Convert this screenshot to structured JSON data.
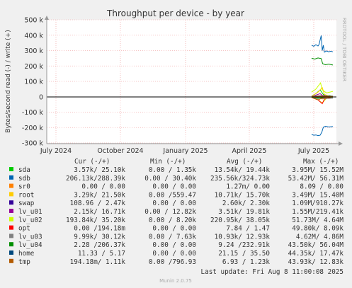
{
  "chart_data": {
    "type": "line",
    "title": "Throughput per device - by year",
    "ylabel": "Bytes/second read (-) / write (+)",
    "xlabel": "",
    "ylim": [
      -300000,
      500000
    ],
    "y_ticks": [
      {
        "value": 500000,
        "label": "500 k"
      },
      {
        "value": 400000,
        "label": "400 k"
      },
      {
        "value": 300000,
        "label": "300 k"
      },
      {
        "value": 200000,
        "label": "200 k"
      },
      {
        "value": 100000,
        "label": "100 k"
      },
      {
        "value": 0,
        "label": "0"
      },
      {
        "value": -100000,
        "label": "-100 k"
      },
      {
        "value": -200000,
        "label": "-200 k"
      },
      {
        "value": -300000,
        "label": "-300 k"
      }
    ],
    "x_ticks": [
      "July 2024",
      "October 2024",
      "January 2025",
      "April 2025",
      "July 2025"
    ],
    "grid": true,
    "watermark": "RRDTOOL / TOBI OETIKER",
    "series": [
      {
        "name": "sda",
        "color": "#00cc00",
        "write": [
          [
            0,
            5000
          ],
          [
            0.2,
            20000
          ],
          [
            0.4,
            45000
          ],
          [
            0.55,
            15000
          ],
          [
            0.7,
            6000
          ],
          [
            0.85,
            8000
          ],
          [
            1,
            3600
          ]
        ],
        "read": [
          [
            0,
            -3000
          ],
          [
            0.3,
            -12000
          ],
          [
            0.5,
            -8000
          ],
          [
            0.7,
            -4000
          ],
          [
            1,
            -3300
          ]
        ]
      },
      {
        "name": "sdb",
        "color": "#0066b3",
        "write": [
          [
            0,
            335000
          ],
          [
            0.1,
            328000
          ],
          [
            0.2,
            338000
          ],
          [
            0.3,
            330000
          ],
          [
            0.35,
            340000
          ],
          [
            0.45,
            398000
          ],
          [
            0.5,
            300000
          ],
          [
            0.55,
            335000
          ],
          [
            0.6,
            290000
          ],
          [
            0.7,
            298000
          ],
          [
            0.8,
            292000
          ],
          [
            0.9,
            296000
          ],
          [
            1,
            292000
          ]
        ],
        "read": [
          [
            0,
            -245000
          ],
          [
            0.1,
            -250000
          ],
          [
            0.2,
            -248000
          ],
          [
            0.3,
            -252000
          ],
          [
            0.4,
            -250000
          ],
          [
            0.48,
            -230000
          ],
          [
            0.55,
            -198000
          ],
          [
            0.65,
            -192000
          ],
          [
            0.8,
            -196000
          ],
          [
            1,
            -194000
          ]
        ]
      },
      {
        "name": "sr0",
        "color": "#ff8000",
        "write": [
          [
            0,
            0
          ],
          [
            1,
            0
          ]
        ],
        "read": [
          [
            0,
            0
          ],
          [
            1,
            0
          ]
        ]
      },
      {
        "name": "root",
        "color": "#ffcc00",
        "write": [
          [
            0,
            4000
          ],
          [
            0.3,
            30000
          ],
          [
            0.5,
            60000
          ],
          [
            0.6,
            15000
          ],
          [
            0.8,
            6000
          ],
          [
            1,
            4000
          ]
        ],
        "read": [
          [
            0,
            -2000
          ],
          [
            0.3,
            -8000
          ],
          [
            0.5,
            -15000
          ],
          [
            0.7,
            -5000
          ],
          [
            1,
            -3000
          ]
        ]
      },
      {
        "name": "swap",
        "color": "#330099",
        "write": [
          [
            0,
            0
          ],
          [
            0.45,
            3000
          ],
          [
            0.5,
            0
          ],
          [
            1,
            0
          ]
        ],
        "read": [
          [
            0,
            0
          ],
          [
            0.5,
            -2000
          ],
          [
            1,
            0
          ]
        ]
      },
      {
        "name": "lv_u01",
        "color": "#990099",
        "write": [
          [
            0,
            2000
          ],
          [
            0.4,
            20000
          ],
          [
            0.5,
            10000
          ],
          [
            1,
            2000
          ]
        ],
        "read": [
          [
            0,
            -1000
          ],
          [
            0.5,
            -5000
          ],
          [
            1,
            -2000
          ]
        ]
      },
      {
        "name": "lv_u02",
        "color": "#ccff00",
        "write": [
          [
            0,
            30000
          ],
          [
            0.2,
            50000
          ],
          [
            0.42,
            90000
          ],
          [
            0.5,
            45000
          ],
          [
            0.7,
            25000
          ],
          [
            1,
            35000
          ]
        ],
        "read": [
          [
            0,
            -5000
          ],
          [
            0.3,
            -20000
          ],
          [
            0.5,
            -40000
          ],
          [
            0.7,
            -10000
          ],
          [
            1,
            -200
          ]
        ]
      },
      {
        "name": "opt",
        "color": "#ff0000",
        "write": [
          [
            0,
            0
          ],
          [
            0.5,
            4000
          ],
          [
            1,
            0
          ]
        ],
        "read": [
          [
            0,
            -3000
          ],
          [
            0.3,
            -20000
          ],
          [
            0.5,
            -45000
          ],
          [
            0.6,
            -15000
          ],
          [
            1,
            -200
          ]
        ]
      },
      {
        "name": "lv_u03",
        "color": "#808080",
        "write": [
          [
            0,
            5000
          ],
          [
            0.5,
            8000
          ],
          [
            1,
            4800
          ]
        ],
        "read": [
          [
            0,
            -5000
          ],
          [
            0.5,
            -12000
          ],
          [
            1,
            -10000
          ]
        ]
      },
      {
        "name": "lv_u04",
        "color": "#008f00",
        "write": [
          [
            0,
            250000
          ],
          [
            0.15,
            245000
          ],
          [
            0.3,
            252000
          ],
          [
            0.45,
            248000
          ],
          [
            0.52,
            215000
          ],
          [
            0.65,
            208000
          ],
          [
            0.8,
            212000
          ],
          [
            1,
            206000
          ]
        ],
        "read": [
          [
            0,
            -2000
          ],
          [
            0.5,
            -4000
          ],
          [
            1,
            -2000
          ]
        ]
      },
      {
        "name": "home",
        "color": "#00487d",
        "write": [
          [
            0,
            5
          ],
          [
            1,
            5
          ]
        ],
        "read": [
          [
            0,
            -11
          ],
          [
            1,
            -11
          ]
        ]
      },
      {
        "name": "tmp",
        "color": "#b35a00",
        "write": [
          [
            0,
            1000
          ],
          [
            0.5,
            3000
          ],
          [
            1,
            1100
          ]
        ],
        "read": [
          [
            0,
            -5000
          ],
          [
            0.3,
            -20000
          ],
          [
            0.5,
            -8000
          ],
          [
            1,
            -194
          ]
        ]
      }
    ]
  },
  "legend": {
    "header": {
      "cur": "Cur (-/+)",
      "min": "Min (-/+)",
      "avg": "Avg (-/+)",
      "max": "Max (-/+)"
    },
    "rows": [
      {
        "name": "sda",
        "color": "#00cc00",
        "cur": "3.57k/ 25.10k",
        "min": "0.00 /  1.35k",
        "avg": "13.54k/ 19.44k",
        "max": "3.95M/ 15.52M"
      },
      {
        "name": "sdb",
        "color": "#0066b3",
        "cur": "206.13k/288.39k",
        "min": "0.00 / 30.40k",
        "avg": "235.56k/324.73k",
        "max": "53.42M/ 56.31M"
      },
      {
        "name": "sr0",
        "color": "#ff8000",
        "cur": "0.00 /  0.00",
        "min": "0.00 /  0.00",
        "avg": "1.27m/  0.00",
        "max": "8.09 /  0.00"
      },
      {
        "name": "root",
        "color": "#ffcc00",
        "cur": "3.29k/ 21.50k",
        "min": "0.00 /559.47",
        "avg": "10.71k/ 15.70k",
        "max": "3.49M/ 15.40M"
      },
      {
        "name": "swap",
        "color": "#330099",
        "cur": "108.96 /  2.47k",
        "min": "0.00 /  0.00",
        "avg": "2.60k/  2.30k",
        "max": "1.09M/910.27k"
      },
      {
        "name": "lv_u01",
        "color": "#990099",
        "cur": "2.15k/ 16.71k",
        "min": "0.00 / 12.82k",
        "avg": "3.51k/ 19.81k",
        "max": "1.55M/219.41k"
      },
      {
        "name": "lv_u02",
        "color": "#ccff00",
        "cur": "193.84k/ 35.20k",
        "min": "0.00 /  8.20k",
        "avg": "220.95k/ 38.05k",
        "max": "51.73M/  4.64M"
      },
      {
        "name": "opt",
        "color": "#ff0000",
        "cur": "0.00 /194.18m",
        "min": "0.00 /  0.00",
        "avg": "7.84 /  1.47",
        "max": "49.80k/  8.09k"
      },
      {
        "name": "lv_u03",
        "color": "#808080",
        "cur": "9.99k/ 30.12k",
        "min": "0.00 /  7.63k",
        "avg": "10.93k/ 12.93k",
        "max": "4.62M/  4.86M"
      },
      {
        "name": "lv_u04",
        "color": "#008f00",
        "cur": "2.28 /206.37k",
        "min": "0.00 /  0.00",
        "avg": "9.24 /232.91k",
        "max": "43.50k/ 56.04M"
      },
      {
        "name": "home",
        "color": "#00487d",
        "cur": "11.33 /  5.17",
        "min": "0.00 /  0.00",
        "avg": "21.15 / 35.50",
        "max": "44.35k/ 17.47k"
      },
      {
        "name": "tmp",
        "color": "#b35a00",
        "cur": "194.18m/  1.11k",
        "min": "0.00 /796.93",
        "avg": "6.93 /  1.23k",
        "max": "43.93k/ 12.83k"
      }
    ],
    "last_update": "Last update: Fri Aug  8 11:00:08 2025"
  },
  "footer": "Munin 2.0.75"
}
